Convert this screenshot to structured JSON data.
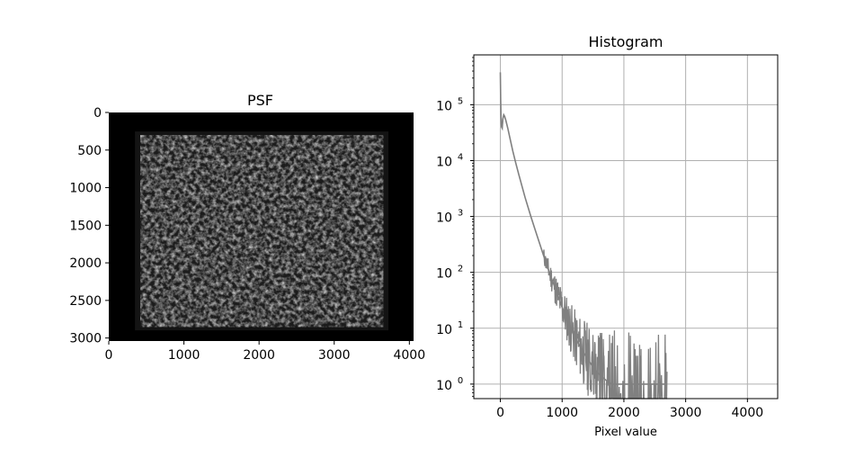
{
  "chart_data": [
    {
      "type": "heatmap",
      "title": "PSF",
      "xlabel": "",
      "ylabel": "",
      "colormap": "gray",
      "xlim": [
        0,
        4056
      ],
      "ylim": [
        3040,
        0
      ],
      "xticks": [
        0,
        1000,
        2000,
        3000,
        4000
      ],
      "yticks": [
        0,
        500,
        1000,
        1500,
        2000,
        2500,
        3000
      ],
      "xtick_labels": [
        "0",
        "1000",
        "2000",
        "3000",
        "4000"
      ],
      "ytick_labels": [
        "0",
        "500",
        "1000",
        "1500",
        "2000",
        "2500",
        "3000"
      ],
      "bright_region": {
        "x": [
          420,
          3650
        ],
        "y": [
          300,
          2850
        ]
      }
    },
    {
      "type": "line",
      "title": "Histogram",
      "xlabel": "Pixel value",
      "ylabel": "",
      "yscale": "log",
      "grid": true,
      "xlim": [
        -430,
        4490
      ],
      "ylim": [
        0.55,
        780000
      ],
      "xticks": [
        0,
        1000,
        2000,
        3000,
        4000
      ],
      "xtick_labels": [
        "0",
        "1000",
        "2000",
        "3000",
        "4000"
      ],
      "yticks": [
        1,
        10,
        100,
        1000,
        10000,
        100000
      ],
      "ytick_labels": [
        "10^0",
        "10^1",
        "10^2",
        "10^3",
        "10^4",
        "10^5"
      ],
      "line_color": "#808080",
      "series": [
        {
          "x": [
            0,
            5,
            10,
            15,
            20,
            30,
            40,
            55,
            70,
            90,
            120,
            150,
            200,
            250,
            300,
            400,
            500,
            600,
            700,
            800,
            900,
            1000,
            1100,
            1200,
            1300,
            1400,
            1500,
            1600,
            1700,
            1800,
            1900,
            2000,
            2100,
            2200,
            2300,
            2400,
            2500,
            2600,
            2700
          ],
          "y": [
            380000,
            120000,
            70000,
            45000,
            40000,
            38000,
            55000,
            66000,
            62000,
            52000,
            38000,
            27000,
            15000,
            9000,
            5500,
            2200,
            950,
            430,
            200,
            95,
            48,
            24,
            13,
            7,
            4.5,
            3,
            2,
            1.5,
            1.2,
            1,
            1,
            1,
            1,
            1,
            1,
            1,
            1,
            1,
            1
          ]
        }
      ]
    }
  ]
}
